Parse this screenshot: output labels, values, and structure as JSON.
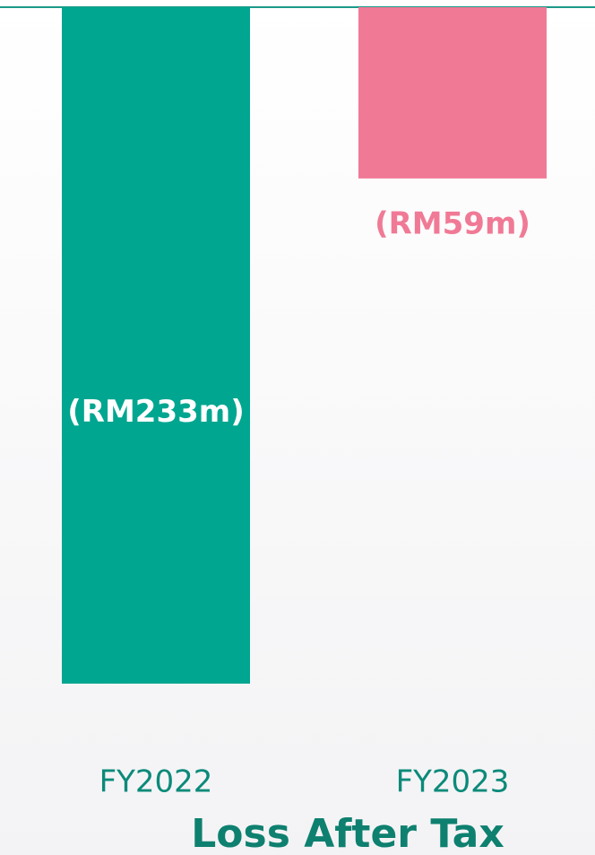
{
  "chart_data": {
    "type": "bar",
    "title": "Loss After Tax",
    "categories": [
      "FY2022",
      "FY2023"
    ],
    "values": [
      -233,
      -59
    ],
    "value_labels": [
      "(RM233m)",
      "(RM59m)"
    ],
    "colors": [
      "#00a690",
      "#f07a96"
    ]
  }
}
